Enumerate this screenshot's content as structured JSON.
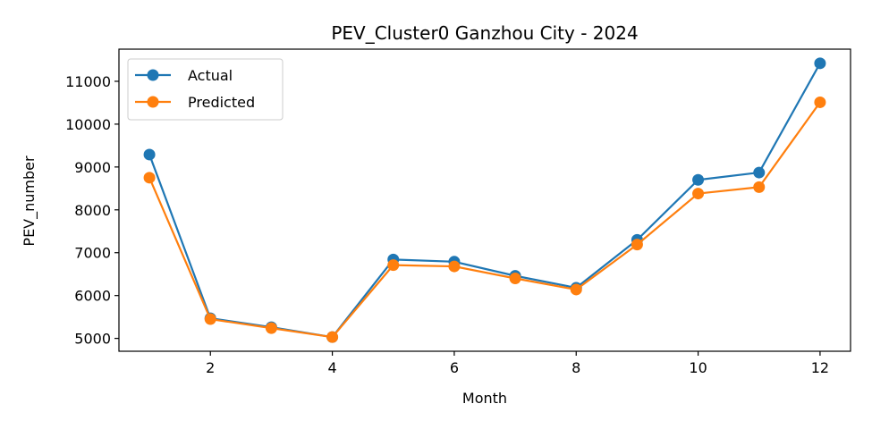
{
  "chart_data": {
    "type": "line",
    "title": "PEV_Cluster0 Ganzhou City - 2024",
    "xlabel": "Month",
    "ylabel": "PEV_number",
    "x": [
      1,
      2,
      3,
      4,
      5,
      6,
      7,
      8,
      9,
      10,
      11,
      12
    ],
    "xlim": [
      0.5,
      12.5
    ],
    "ylim": [
      4700,
      11750
    ],
    "xticks": [
      2,
      4,
      6,
      8,
      10,
      12
    ],
    "yticks": [
      5000,
      6000,
      7000,
      8000,
      9000,
      10000,
      11000
    ],
    "grid": false,
    "legend_position": "top-left",
    "series": [
      {
        "name": "Actual",
        "color": "#1f77b4",
        "values": [
          9290,
          5470,
          5260,
          5030,
          6840,
          6790,
          6460,
          6180,
          7300,
          8700,
          8870,
          11420
        ]
      },
      {
        "name": "Predicted",
        "color": "#ff7f0e",
        "values": [
          8750,
          5450,
          5240,
          5030,
          6710,
          6680,
          6400,
          6140,
          7190,
          8380,
          8530,
          10510
        ]
      }
    ]
  }
}
